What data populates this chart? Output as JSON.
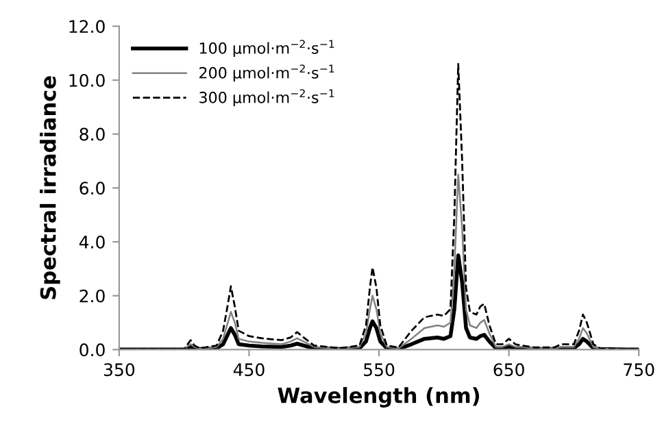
{
  "chart_data": {
    "type": "line",
    "xlabel": "Wavelength (nm)",
    "ylabel": "Spectral irradiance",
    "x": [
      350,
      400,
      402,
      405,
      408,
      412,
      425,
      430,
      433,
      436,
      439,
      442,
      450,
      460,
      475,
      482,
      487,
      492,
      500,
      520,
      535,
      540,
      543,
      545,
      548,
      551,
      556,
      565,
      575,
      585,
      595,
      600,
      605,
      608,
      611,
      614,
      617,
      620,
      625,
      628,
      631,
      635,
      640,
      645,
      650,
      655,
      660,
      670,
      685,
      690,
      695,
      700,
      704,
      707,
      710,
      715,
      720,
      740,
      750
    ],
    "series": [
      {
        "name": "100 μmol·m$^{−2}$·s$^{−1}$",
        "color": "#000000",
        "line_style": "solid",
        "values": [
          0,
          0,
          0.05,
          0.1,
          0.05,
          0.02,
          0.05,
          0.2,
          0.5,
          0.8,
          0.55,
          0.2,
          0.15,
          0.12,
          0.1,
          0.15,
          0.22,
          0.15,
          0.05,
          0.02,
          0.05,
          0.3,
          0.8,
          1.05,
          0.8,
          0.3,
          0.05,
          0.02,
          0.2,
          0.4,
          0.45,
          0.4,
          0.5,
          1.5,
          3.5,
          2.5,
          0.8,
          0.45,
          0.4,
          0.5,
          0.55,
          0.3,
          0.05,
          0.05,
          0.1,
          0.05,
          0.05,
          0.02,
          0.02,
          0.05,
          0.05,
          0.05,
          0.2,
          0.4,
          0.3,
          0.05,
          0.02,
          0,
          0
        ]
      },
      {
        "name": "200 μmol·m$^{−2}$·s$^{−1}$",
        "color": "#808080",
        "line_style": "solid",
        "values": [
          0,
          0,
          0.1,
          0.2,
          0.1,
          0.03,
          0.1,
          0.4,
          0.9,
          1.4,
          1.0,
          0.4,
          0.3,
          0.25,
          0.2,
          0.3,
          0.42,
          0.3,
          0.1,
          0.03,
          0.1,
          0.6,
          1.5,
          2.0,
          1.5,
          0.6,
          0.1,
          0.05,
          0.4,
          0.8,
          0.9,
          0.85,
          1.0,
          3.0,
          6.5,
          4.5,
          1.5,
          0.9,
          0.8,
          1.0,
          1.1,
          0.6,
          0.1,
          0.1,
          0.2,
          0.1,
          0.1,
          0.04,
          0.04,
          0.1,
          0.1,
          0.1,
          0.4,
          0.8,
          0.6,
          0.1,
          0.04,
          0,
          0
        ]
      },
      {
        "name": "300 μmol·m$^{−2}$·s$^{−1}$",
        "color": "#000000",
        "line_style": "dashed",
        "values": [
          0,
          0,
          0.15,
          0.35,
          0.15,
          0.05,
          0.15,
          0.7,
          1.5,
          2.35,
          1.6,
          0.7,
          0.5,
          0.42,
          0.35,
          0.45,
          0.65,
          0.45,
          0.15,
          0.05,
          0.15,
          0.9,
          2.3,
          3.05,
          2.3,
          0.9,
          0.15,
          0.08,
          0.7,
          1.2,
          1.3,
          1.25,
          1.5,
          5.0,
          10.6,
          7.0,
          2.3,
          1.4,
          1.3,
          1.6,
          1.7,
          0.9,
          0.2,
          0.2,
          0.4,
          0.2,
          0.15,
          0.08,
          0.08,
          0.2,
          0.2,
          0.2,
          0.7,
          1.3,
          1.0,
          0.2,
          0.05,
          0,
          0
        ]
      }
    ],
    "xlim": [
      350,
      750
    ],
    "xticks": [
      350,
      450,
      550,
      650,
      750
    ],
    "ylim": [
      0,
      12
    ],
    "yticks": [
      {
        "value": 0,
        "label": "0.0"
      },
      {
        "value": 2,
        "label": "2.0"
      },
      {
        "value": 4,
        "label": "4.0"
      },
      {
        "value": 6,
        "label": "6.0"
      },
      {
        "value": 8,
        "label": "8.0"
      },
      {
        "value": 10,
        "label": "10.0"
      },
      {
        "value": 12,
        "label": "12.0"
      }
    ],
    "grid": false,
    "legend": "top left"
  }
}
